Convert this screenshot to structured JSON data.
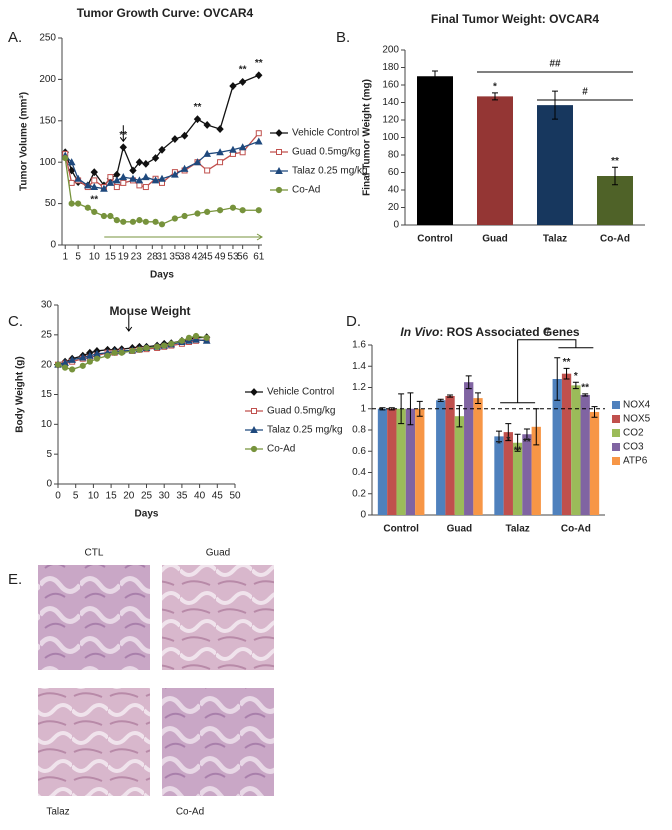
{
  "panel_labels": [
    "A.",
    "B.",
    "C.",
    "D.",
    "E."
  ],
  "chart_data": [
    {
      "type": "line",
      "title": "Tumor Growth Curve: OVCAR4",
      "x_label": "Days",
      "y_label": "Tumor Volume (mm³)",
      "x": [
        1,
        3,
        5,
        8,
        10,
        13,
        15,
        17,
        19,
        22,
        24,
        26,
        29,
        31,
        35,
        38,
        42,
        45,
        49,
        53,
        56,
        61
      ],
      "xlim": [
        0,
        62
      ],
      "xticks": [
        1,
        5,
        10,
        15,
        19,
        23,
        28,
        31,
        35,
        38,
        42,
        45,
        49,
        53,
        56,
        61
      ],
      "ylim": [
        0,
        250
      ],
      "yticks": [
        0,
        50,
        100,
        150,
        200,
        250
      ],
      "legend": "right",
      "series": [
        {
          "name": "Vehicle Control",
          "color": "#111111",
          "marker": "diamond",
          "values": [
            112,
            90,
            76,
            72,
            88,
            72,
            80,
            85,
            118,
            90,
            100,
            98,
            105,
            115,
            128,
            132,
            152,
            145,
            140,
            192,
            197,
            205
          ]
        },
        {
          "name": "Guad 0.5mg/kg",
          "color": "#c0504d",
          "marker": "square",
          "values": [
            110,
            75,
            78,
            70,
            78,
            70,
            82,
            70,
            75,
            78,
            72,
            70,
            80,
            75,
            88,
            90,
            100,
            90,
            100,
            110,
            112,
            135
          ]
        },
        {
          "name": "Talaz 0.25 mg/kg",
          "color": "#1f497d",
          "marker": "triangle",
          "values": [
            108,
            100,
            80,
            72,
            70,
            68,
            75,
            78,
            82,
            80,
            78,
            82,
            78,
            80,
            85,
            92,
            100,
            110,
            112,
            115,
            118,
            125
          ]
        },
        {
          "name": "Co-Ad",
          "color": "#77933c",
          "marker": "circle",
          "values": [
            105,
            50,
            50,
            45,
            40,
            35,
            35,
            30,
            28,
            28,
            30,
            28,
            28,
            25,
            32,
            35,
            38,
            40,
            42,
            45,
            42,
            42
          ]
        }
      ],
      "annotations": [
        {
          "text": "**",
          "x": 19,
          "series": 0
        },
        {
          "text": "**",
          "x": 42,
          "series": 0
        },
        {
          "text": "**",
          "x": 56,
          "series": 0
        },
        {
          "text": "**",
          "x": 61,
          "series": 0
        },
        {
          "text": "**",
          "x": 10,
          "series": 3
        }
      ]
    },
    {
      "type": "bar",
      "title": "Final Tumor Weight: OVCAR4",
      "y_label": "Final Tumor Weight (mg)",
      "categories": [
        "Control",
        "Guad",
        "Talaz",
        "Co-Ad"
      ],
      "values": [
        170,
        147,
        137,
        56
      ],
      "errors": [
        6,
        4,
        16,
        10
      ],
      "colors": [
        "#000000",
        "#943634",
        "#17375e",
        "#4f6228"
      ],
      "ylim": [
        0,
        200
      ],
      "yticks": [
        0,
        20,
        40,
        60,
        80,
        100,
        120,
        140,
        160,
        180,
        200
      ],
      "annotations": [
        {
          "text": "*",
          "category": 1
        },
        {
          "text": "**",
          "category": 3
        }
      ],
      "brackets": [
        {
          "text": "##",
          "from": 1,
          "to": 3
        },
        {
          "text": "#",
          "from": 2,
          "to": 3
        }
      ]
    },
    {
      "type": "line",
      "title": "Mouse Weight",
      "x_label": "Days",
      "y_label": "Body Weight (g)",
      "x": [
        0,
        2,
        4,
        7,
        9,
        11,
        14,
        16,
        18,
        21,
        23,
        25,
        28,
        30,
        32,
        35,
        37,
        39,
        42
      ],
      "xlim": [
        0,
        50
      ],
      "xticks": [
        0,
        5,
        10,
        15,
        20,
        25,
        30,
        35,
        40,
        45,
        50
      ],
      "ylim": [
        0,
        30
      ],
      "yticks": [
        0,
        5,
        10,
        15,
        20,
        25,
        30
      ],
      "legend": "right",
      "series": [
        {
          "name": "Vehicle Control",
          "color": "#111111",
          "marker": "diamond",
          "values": [
            20,
            20.5,
            21,
            21.5,
            22,
            22.3,
            22.5,
            22.5,
            22.6,
            22.8,
            23,
            23,
            23.2,
            23.5,
            23.6,
            24,
            24.3,
            24.5,
            24.6
          ]
        },
        {
          "name": "Guad 0.5mg/kg",
          "color": "#c0504d",
          "marker": "square",
          "values": [
            20,
            20.2,
            20.5,
            21,
            21.2,
            21.5,
            22,
            22,
            22.2,
            22.3,
            22.5,
            22.6,
            22.8,
            23,
            23.2,
            23.5,
            23.8,
            24,
            24.2
          ]
        },
        {
          "name": "Talaz 0.25 mg/kg",
          "color": "#1f497d",
          "marker": "triangle",
          "values": [
            20,
            20.3,
            20.8,
            21.2,
            21.5,
            21.8,
            22,
            22.2,
            22.3,
            22.4,
            22.6,
            22.8,
            23,
            23.2,
            23.4,
            23.8,
            24,
            24.2,
            24
          ]
        },
        {
          "name": "Co-Ad",
          "color": "#77933c",
          "marker": "circle",
          "values": [
            20,
            19.5,
            19.2,
            19.8,
            20.5,
            21,
            21.5,
            22,
            22,
            22.3,
            22.5,
            22.8,
            23,
            23.2,
            23.5,
            24,
            24.5,
            24.8,
            24.5
          ]
        }
      ],
      "annotations": []
    },
    {
      "type": "bar",
      "title_italic": "In Vivo",
      "title": ": ROS Associated Genes",
      "categories": [
        "Control",
        "Guad",
        "Talaz",
        "Co-Ad"
      ],
      "ylim": [
        0,
        1.6
      ],
      "yticks": [
        0,
        0.2,
        0.4,
        0.6,
        0.8,
        1,
        1.2,
        1.4,
        1.6
      ],
      "reference_line": 1,
      "legend": "right",
      "series": [
        {
          "name": "NOX4",
          "color": "#4f81bd",
          "values": [
            1,
            1.08,
            0.74,
            1.28
          ],
          "errors": [
            0.01,
            0.01,
            0.05,
            0.2
          ]
        },
        {
          "name": "NOX5",
          "color": "#c0504d",
          "values": [
            1,
            1.12,
            0.78,
            1.33
          ],
          "errors": [
            0.01,
            0.01,
            0.08,
            0.05
          ]
        },
        {
          "name": "CO2",
          "color": "#9bbb59",
          "values": [
            1,
            0.93,
            0.68,
            1.22
          ],
          "errors": [
            0.14,
            0.1,
            0.08,
            0.03
          ]
        },
        {
          "name": "CO3",
          "color": "#8064a2",
          "values": [
            1,
            1.25,
            0.76,
            1.13
          ],
          "errors": [
            0.15,
            0.06,
            0.05,
            0.01
          ]
        },
        {
          "name": "ATP6",
          "color": "#f79646",
          "values": [
            1,
            1.1,
            0.83,
            0.97
          ],
          "errors": [
            0.07,
            0.05,
            0.17,
            0.05
          ]
        }
      ],
      "annotations": [
        {
          "text": "*",
          "series": 0,
          "category": 2
        },
        {
          "text": "*",
          "series": 1,
          "category": 2
        },
        {
          "text": "**",
          "series": 2,
          "category": 2
        },
        {
          "text": "**",
          "series": 3,
          "category": 2
        },
        {
          "text": "**",
          "series": 1,
          "category": 3
        },
        {
          "text": "*",
          "series": 2,
          "category": 3
        },
        {
          "text": "**",
          "series": 3,
          "category": 3
        }
      ],
      "brackets": [
        {
          "text": "#",
          "from": 2,
          "to": 3
        }
      ]
    }
  ],
  "histology": {
    "labels": [
      "CTL",
      "Guad",
      "Talaz",
      "Co-Ad"
    ]
  }
}
